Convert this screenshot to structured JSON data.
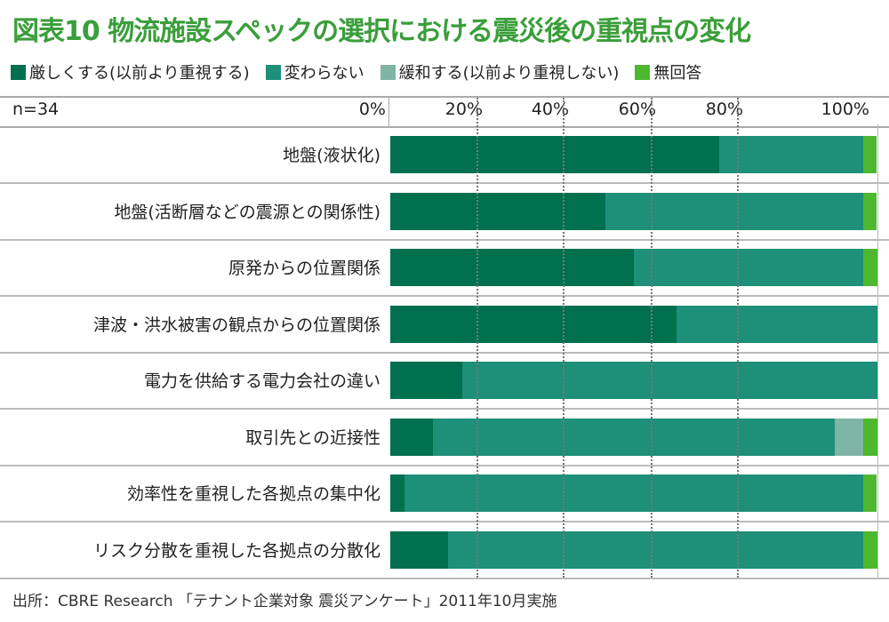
{
  "chart_data": {
    "type": "bar",
    "orientation": "horizontal-stacked-100",
    "title": "図表10 物流施設スペックの選択における震災後の重視点の変化",
    "note": "n=34",
    "xlim": [
      0,
      100
    ],
    "ticks": [
      "0%",
      "20%",
      "40%",
      "60%",
      "80%",
      "100%"
    ],
    "grid": true,
    "legend_position": "top",
    "categories": [
      "地盤(液状化)",
      "地盤(活断層などの震源との関係性)",
      "原発からの位置関係",
      "津波・洪水被害の観点からの位置関係",
      "電力を供給する電力会社の違い",
      "取引先との近接性",
      "効率性を重視した各拠点の集中化",
      "リスク分散を重視した各拠点の分散化"
    ],
    "series": [
      {
        "name": "厳しくする(以前より重視する)",
        "color": "#00704f",
        "values": [
          67.6,
          44.1,
          50.0,
          58.8,
          14.7,
          8.8,
          2.9,
          11.8
        ]
      },
      {
        "name": "変わらない",
        "color": "#1e8f78",
        "values": [
          29.4,
          52.9,
          47.1,
          41.2,
          85.3,
          82.4,
          94.1,
          85.3
        ]
      },
      {
        "name": "緩和する(以前より重視しない)",
        "color": "#7fb5a5",
        "values": [
          0,
          0,
          0,
          0,
          0,
          5.9,
          0,
          0
        ]
      },
      {
        "name": "無回答",
        "color": "#4db82e",
        "values": [
          2.9,
          2.9,
          2.9,
          0,
          0,
          2.9,
          2.9,
          2.9
        ]
      }
    ],
    "source": "出所：CBRE Research 「テナント企業対象 震災アンケート」2011年10月実施"
  }
}
